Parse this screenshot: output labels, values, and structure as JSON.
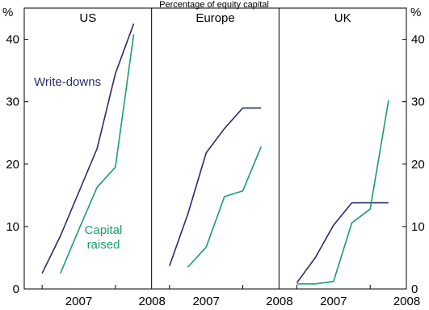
{
  "top_title": "Percentage of equity capital",
  "y_unit": "%",
  "colors": {
    "writedowns": "#2b2b6e",
    "capital": "#1a9e6b",
    "axis": "#000000"
  },
  "chart_data": {
    "type": "line",
    "ylim": [
      0,
      45
    ],
    "y_ticks": [
      0,
      10,
      20,
      30,
      40
    ],
    "x_tick_labels": [
      "2007",
      "2008"
    ],
    "panels": [
      {
        "title": "US",
        "series": [
          {
            "name": "Write-downs",
            "x": [
              2007.0,
              2007.25,
              2007.5,
              2007.75,
              2008.0,
              2008.25
            ],
            "y": [
              2.5,
              8.5,
              15.5,
              22.5,
              34.5,
              42.5
            ]
          },
          {
            "name": "Capital raised",
            "x": [
              2007.25,
              2007.5,
              2007.75,
              2008.0,
              2008.25
            ],
            "y": [
              2.5,
              9.5,
              16.3,
              19.5,
              40.8
            ]
          }
        ],
        "annotations": [
          {
            "text": "Write-downs",
            "series": "writedowns"
          },
          {
            "text": "Capital raised",
            "series": "capital"
          }
        ]
      },
      {
        "title": "Europe",
        "series": [
          {
            "name": "Write-downs",
            "x": [
              2007.0,
              2007.25,
              2007.5,
              2007.75,
              2008.0,
              2008.25
            ],
            "y": [
              3.7,
              12,
              21.8,
              25.7,
              29,
              29
            ]
          },
          {
            "name": "Capital raised",
            "x": [
              2007.25,
              2007.5,
              2007.75,
              2008.0,
              2008.25
            ],
            "y": [
              3.5,
              6.7,
              14.8,
              15.7,
              22.8
            ]
          }
        ],
        "annotations": []
      },
      {
        "title": "UK",
        "series": [
          {
            "name": "Write-downs",
            "x": [
              2007.0,
              2007.25,
              2007.5,
              2007.75,
              2008.0,
              2008.25
            ],
            "y": [
              1,
              5,
              10.2,
              13.8,
              13.8,
              13.8
            ]
          },
          {
            "name": "Capital raised",
            "x": [
              2007.0,
              2007.25,
              2007.5,
              2007.75,
              2008.0,
              2008.25
            ],
            "y": [
              0.8,
              0.8,
              1.2,
              10.6,
              12.8,
              30.2
            ]
          }
        ],
        "annotations": []
      }
    ]
  }
}
